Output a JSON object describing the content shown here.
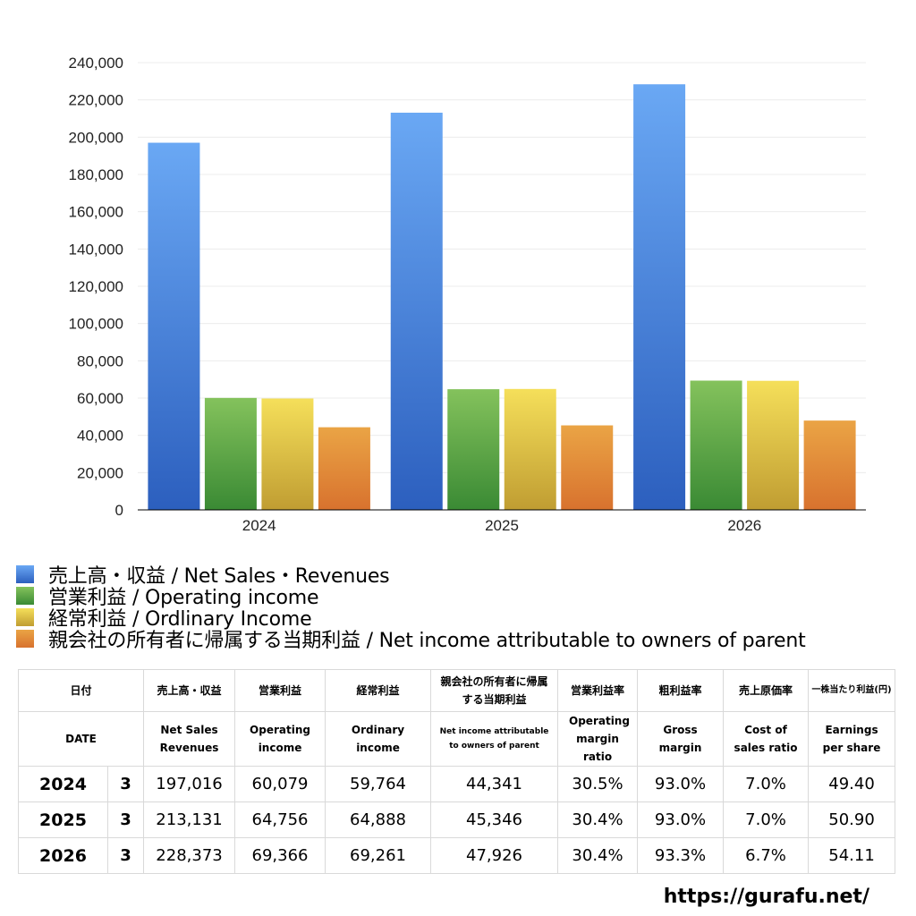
{
  "chart_data": {
    "type": "bar",
    "categories": [
      "2024",
      "2025",
      "2026"
    ],
    "series": [
      {
        "name": "売上高・収益 / Net Sales・Revenues",
        "values": [
          197016,
          213131,
          228373
        ],
        "color_top": "#6aa8f4",
        "color_bottom": "#2c5fbe"
      },
      {
        "name": "営業利益 / Operating income",
        "values": [
          60079,
          64756,
          69366
        ],
        "color_top": "#84c25c",
        "color_bottom": "#3a8a34"
      },
      {
        "name": "経常利益 / Ordlinary Income",
        "values": [
          59764,
          64888,
          69261
        ],
        "color_top": "#f5df5a",
        "color_bottom": "#c09d32"
      },
      {
        "name": "親会社の所有者に帰属する当期利益 / Net income attributable to owners of parent",
        "values": [
          44341,
          45346,
          47926
        ],
        "color_top": "#eaa445",
        "color_bottom": "#d8722e"
      }
    ],
    "ylim": [
      0,
      240000
    ],
    "yticks": [
      "0",
      "20,000",
      "40,000",
      "60,000",
      "80,000",
      "100,000",
      "120,000",
      "140,000",
      "160,000",
      "180,000",
      "200,000",
      "220,000",
      "240,000"
    ],
    "grid": true,
    "legend": "bottom"
  },
  "table": {
    "head_jp": [
      "日付",
      "売上高・収益",
      "営業利益",
      "経常利益",
      "親会社の所有者に帰属する当期利益",
      "営業利益率",
      "粗利益率",
      "売上原価率",
      "一株当たり利益(円)"
    ],
    "head_en": [
      "DATE",
      "Net Sales Revenues",
      "Operating income",
      "Ordinary income",
      "Net income attributable to owners of parent",
      "Operating margin ratio",
      "Gross margin",
      "Cost of sales ratio",
      "Earnings per share"
    ],
    "rows": [
      {
        "year": "2024",
        "month": "3",
        "cells": [
          "197,016",
          "60,079",
          "59,764",
          "44,341",
          "30.5%",
          "93.0%",
          "7.0%",
          "49.40"
        ]
      },
      {
        "year": "2025",
        "month": "3",
        "cells": [
          "213,131",
          "64,756",
          "64,888",
          "45,346",
          "30.4%",
          "93.0%",
          "7.0%",
          "50.90"
        ]
      },
      {
        "year": "2026",
        "month": "3",
        "cells": [
          "228,373",
          "69,366",
          "69,261",
          "47,926",
          "30.4%",
          "93.3%",
          "6.7%",
          "54.11"
        ]
      }
    ]
  },
  "url": "https://gurafu.net/"
}
